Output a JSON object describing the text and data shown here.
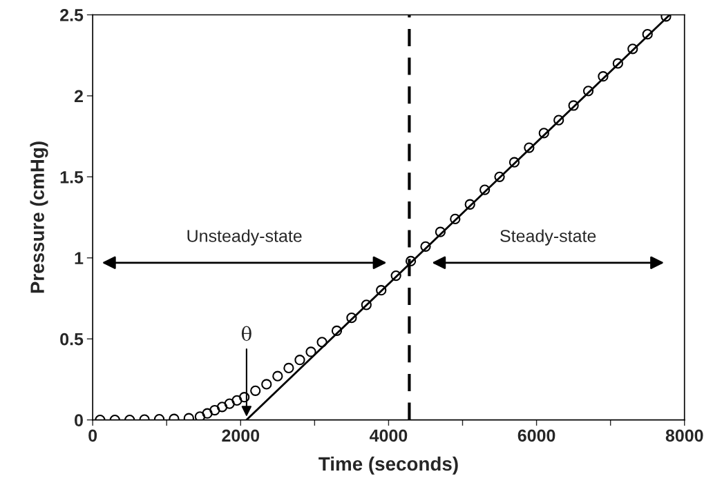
{
  "chart_data": {
    "type": "scatter",
    "xlabel": "Time (seconds)",
    "ylabel": "Pressure (cmHg)",
    "xlim": [
      0,
      8000
    ],
    "ylim": [
      0,
      2.5
    ],
    "xticks": [
      0,
      {
        "value": 1000,
        "label": null
      },
      2000,
      {
        "value": 3000,
        "label": null
      },
      4000,
      {
        "value": 5000,
        "label": null
      },
      6000,
      {
        "value": 7000,
        "label": null
      },
      8000
    ],
    "yticks": [
      0,
      0.5,
      1,
      1.5,
      2,
      2.5
    ],
    "grid": false,
    "series": [
      {
        "marker": "circle",
        "color": "#000000",
        "x": [
          100,
          300,
          500,
          700,
          900,
          1100,
          1300,
          1450,
          1550,
          1650,
          1750,
          1850,
          1950,
          2050,
          2200,
          2350,
          2500,
          2650,
          2800,
          2950,
          3100,
          3300,
          3500,
          3700,
          3900,
          4100,
          4300,
          4500,
          4700,
          4900,
          5100,
          5300,
          5500,
          5700,
          5900,
          6100,
          6300,
          6500,
          6700,
          6900,
          7100,
          7300,
          7500,
          7750
        ],
        "values": [
          0,
          0,
          0,
          0.002,
          0.004,
          0.006,
          0.01,
          0.02,
          0.04,
          0.06,
          0.08,
          0.1,
          0.12,
          0.14,
          0.18,
          0.22,
          0.27,
          0.32,
          0.37,
          0.42,
          0.48,
          0.55,
          0.63,
          0.71,
          0.8,
          0.89,
          0.98,
          1.07,
          1.16,
          1.24,
          1.33,
          1.42,
          1.5,
          1.59,
          1.68,
          1.77,
          1.85,
          1.94,
          2.03,
          2.12,
          2.2,
          2.29,
          2.38,
          2.49
        ]
      },
      {
        "type": "line",
        "color": "#000000",
        "x": [
          2080,
          7800
        ],
        "values": [
          0,
          2.5
        ]
      }
    ],
    "ref_lines": [
      {
        "axis": "x",
        "value": 4280,
        "color": "#000000",
        "line_style": "dashed"
      }
    ],
    "annotations": [
      "Unsteady-state",
      "Steady-state",
      {
        "text": "θ",
        "x": 2080,
        "y": 0.02
      }
    ]
  }
}
